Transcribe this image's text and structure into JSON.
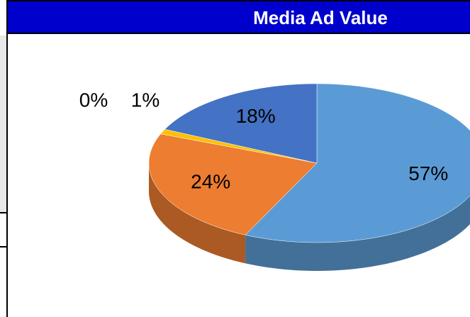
{
  "chart_data": {
    "type": "pie",
    "title": "Media Ad Value",
    "values": [
      57,
      24,
      0,
      1,
      18
    ],
    "value_labels": [
      "57%",
      "24%",
      "0%",
      "1%",
      "18%"
    ],
    "colors": [
      "#5b9bd5",
      "#ed7d31",
      "#a5a5a5",
      "#ffc000",
      "#4472c4"
    ],
    "three_d": true
  }
}
